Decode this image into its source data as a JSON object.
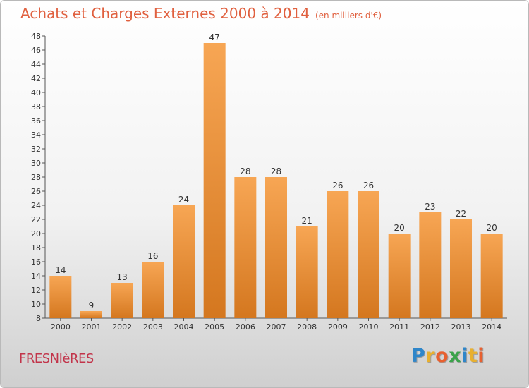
{
  "chart_data": {
    "type": "bar",
    "title": "Achats et Charges Externes 2000 à 2014",
    "unit_note": "(en milliers d'€)",
    "categories": [
      "2000",
      "2001",
      "2002",
      "2003",
      "2004",
      "2005",
      "2006",
      "2007",
      "2008",
      "2009",
      "2010",
      "2011",
      "2012",
      "2013",
      "2014"
    ],
    "values": [
      14,
      9,
      13,
      16,
      24,
      47,
      28,
      28,
      21,
      26,
      26,
      20,
      23,
      22,
      20
    ],
    "ylim": [
      8,
      48
    ],
    "yticks": [
      8,
      10,
      12,
      14,
      16,
      18,
      20,
      22,
      24,
      26,
      28,
      30,
      32,
      34,
      36,
      38,
      40,
      42,
      44,
      46,
      48
    ],
    "grid": false,
    "bar_color_top": "#f7a654",
    "bar_color_bottom": "#d4771f"
  },
  "footer": {
    "commune": "FRESNIèRES",
    "logo_letters": [
      "P",
      "r",
      "o",
      "x",
      "i",
      "t",
      "i"
    ],
    "logo_colors": [
      "#2f86c9",
      "#e8b02f",
      "#e8602f",
      "#3aa34a",
      "#2f86c9",
      "#e8b02f",
      "#e8602f"
    ]
  }
}
